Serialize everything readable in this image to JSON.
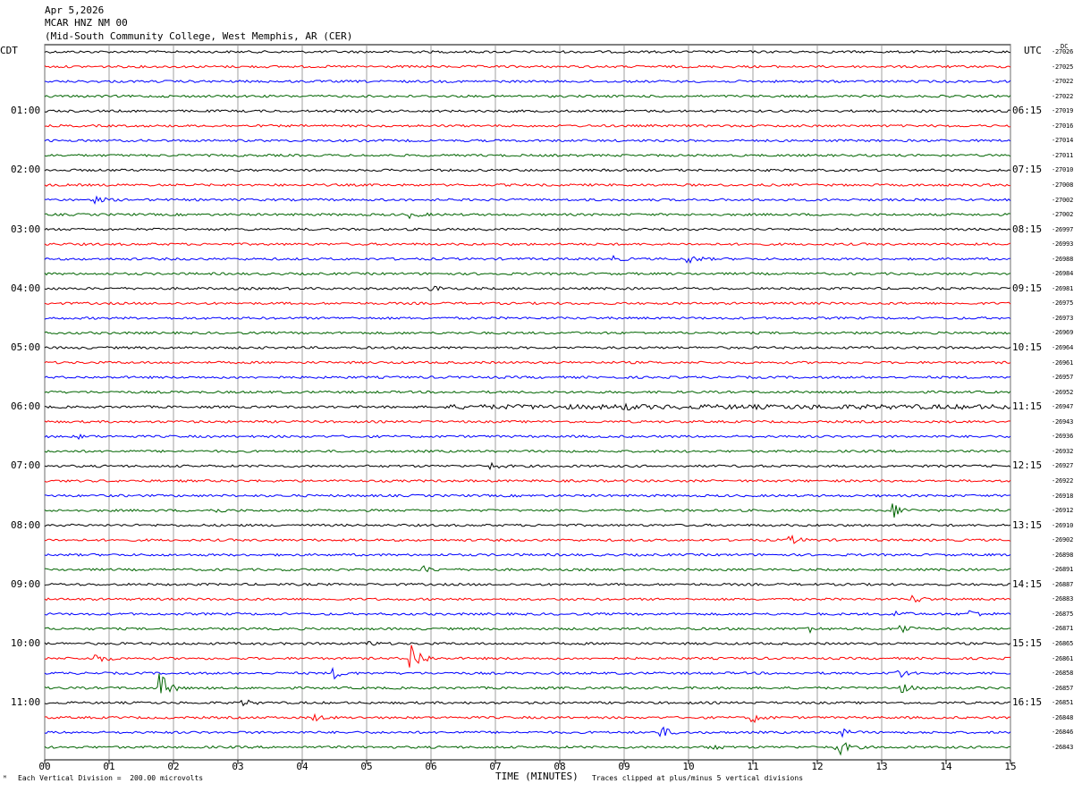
{
  "header": {
    "date": "Apr 5,2026",
    "station": "MCAR HNZ NM 00",
    "location": "(Mid-South Community College, West Memphis, AR (CER)"
  },
  "left_tz": "CDT",
  "right_tz": "UTC",
  "offset_unit": "DC",
  "footer": {
    "scale": "Each Vertical Division =  200.00 microvolts",
    "clip": "Traces clipped at plus/minus 5 vertical divisions",
    "corner_mark": "ᴹ"
  },
  "chart_data": {
    "type": "line",
    "xlabel": "TIME (MINUTES)",
    "x_ticks": [
      "00",
      "01",
      "02",
      "03",
      "04",
      "05",
      "06",
      "07",
      "08",
      "09",
      "10",
      "11",
      "12",
      "13",
      "14",
      "15"
    ],
    "xlim": [
      0,
      15
    ],
    "grid": true,
    "colors": [
      "#000000",
      "#ff0000",
      "#0000ff",
      "#006400"
    ],
    "left_times": [
      "",
      "",
      "",
      "",
      "01:00",
      "",
      "",
      "",
      "02:00",
      "",
      "",
      "",
      "03:00",
      "",
      "",
      "",
      "04:00",
      "",
      "",
      "",
      "05:00",
      "",
      "",
      "",
      "06:00",
      "",
      "",
      "",
      "07:00",
      "",
      "",
      "",
      "08:00",
      "",
      "",
      "",
      "09:00",
      "",
      "",
      "",
      "10:00",
      "",
      "",
      "",
      "11:00",
      "",
      "",
      ""
    ],
    "right_times": [
      "",
      "",
      "",
      "",
      "06:15",
      "",
      "",
      "",
      "07:15",
      "",
      "",
      "",
      "08:15",
      "",
      "",
      "",
      "09:15",
      "",
      "",
      "",
      "10:15",
      "",
      "",
      "",
      "11:15",
      "",
      "",
      "",
      "12:15",
      "",
      "",
      "",
      "13:15",
      "",
      "",
      "",
      "14:15",
      "",
      "",
      "",
      "15:15",
      "",
      "",
      "",
      "16:15",
      "",
      "",
      ""
    ],
    "offsets": [
      "-27026",
      "-27025",
      "-27022",
      "-27022",
      "-27019",
      "-27016",
      "-27014",
      "-27011",
      "-27010",
      "-27008",
      "-27002",
      "-27002",
      "-26997",
      "-26993",
      "-26988",
      "-26984",
      "-26981",
      "-26975",
      "-26973",
      "-26969",
      "-26964",
      "-26961",
      "-26957",
      "-26952",
      "-26947",
      "-26943",
      "-26936",
      "-26932",
      "-26927",
      "-26922",
      "-26918",
      "-26912",
      "-26910",
      "-26902",
      "-26898",
      "-26891",
      "-26887",
      "-26883",
      "-26875",
      "-26871",
      "-26865",
      "-26861",
      "-26858",
      "-26857",
      "-26851",
      "-26848",
      "-26846",
      "-26843"
    ],
    "events": [
      {
        "row": 10,
        "minute": 0.8,
        "amp": 3
      },
      {
        "row": 11,
        "minute": 5.7,
        "amp": 3
      },
      {
        "row": 14,
        "minute": 8.8,
        "amp": 3
      },
      {
        "row": 14,
        "minute": 10.0,
        "amp": 5
      },
      {
        "row": 16,
        "minute": 6.0,
        "amp": 4
      },
      {
        "row": 24,
        "minute": 9.0,
        "amp": 2
      },
      {
        "row": 26,
        "minute": 0.5,
        "amp": 2
      },
      {
        "row": 28,
        "minute": 6.9,
        "amp": 4
      },
      {
        "row": 31,
        "minute": 2.6,
        "amp": 3
      },
      {
        "row": 31,
        "minute": 13.2,
        "amp": 7
      },
      {
        "row": 33,
        "minute": 11.6,
        "amp": 4
      },
      {
        "row": 35,
        "minute": 5.9,
        "amp": 3
      },
      {
        "row": 37,
        "minute": 13.5,
        "amp": 4
      },
      {
        "row": 38,
        "minute": 13.2,
        "amp": 4
      },
      {
        "row": 38,
        "minute": 14.4,
        "amp": 4
      },
      {
        "row": 39,
        "minute": 11.8,
        "amp": 6
      },
      {
        "row": 39,
        "minute": 13.3,
        "amp": 6
      },
      {
        "row": 40,
        "minute": 5.0,
        "amp": 3
      },
      {
        "row": 41,
        "minute": 0.8,
        "amp": 5
      },
      {
        "row": 41,
        "minute": 5.7,
        "amp": 18
      },
      {
        "row": 42,
        "minute": 4.5,
        "amp": 5
      },
      {
        "row": 42,
        "minute": 13.2,
        "amp": 8
      },
      {
        "row": 43,
        "minute": 1.8,
        "amp": 16
      },
      {
        "row": 43,
        "minute": 13.3,
        "amp": 5
      },
      {
        "row": 44,
        "minute": 3.1,
        "amp": 3
      },
      {
        "row": 45,
        "minute": 4.2,
        "amp": 3
      },
      {
        "row": 45,
        "minute": 11.0,
        "amp": 5
      },
      {
        "row": 46,
        "minute": 9.6,
        "amp": 5
      },
      {
        "row": 46,
        "minute": 12.3,
        "amp": 7
      },
      {
        "row": 47,
        "minute": 12.3,
        "amp": 12
      },
      {
        "row": 47,
        "minute": 10.3,
        "amp": 4
      }
    ]
  }
}
